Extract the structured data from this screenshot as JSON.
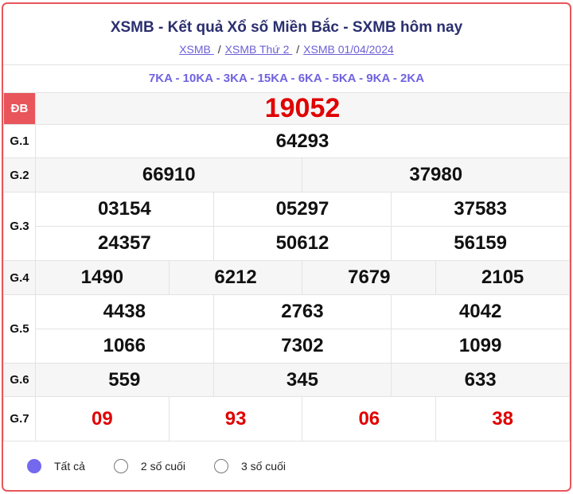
{
  "header": {
    "title": "XSMB - Kết quả Xổ số Miền Bắc - SXMB hôm nay",
    "breadcrumb": [
      "XSMB ",
      "XSMB Thứ 2 ",
      "XSMB 01/04/2024"
    ],
    "separator": "/"
  },
  "codes": "7KA - 10KA - 3KA - 15KA - 6KA - 5KA - 9KA - 2KA",
  "prizes": {
    "db": {
      "label": "ĐB",
      "values": [
        "19052"
      ]
    },
    "g1": {
      "label": "G.1",
      "values": [
        "64293"
      ]
    },
    "g2": {
      "label": "G.2",
      "values": [
        "66910",
        "37980"
      ]
    },
    "g3": {
      "label": "G.3",
      "values": [
        "03154",
        "05297",
        "37583",
        "24357",
        "50612",
        "56159"
      ]
    },
    "g4": {
      "label": "G.4",
      "values": [
        "1490",
        "6212",
        "7679",
        "2105"
      ]
    },
    "g5": {
      "label": "G.5",
      "values": [
        "4438",
        "2763",
        "4042",
        "1066",
        "7302",
        "1099"
      ]
    },
    "g6": {
      "label": "G.6",
      "values": [
        "559",
        "345",
        "633"
      ]
    },
    "g7": {
      "label": "G.7",
      "values": [
        "09",
        "93",
        "06",
        "38"
      ]
    }
  },
  "filter": {
    "options": [
      "Tất cả",
      "2 số cuối",
      "3 số cuối"
    ],
    "selected": "Tất cả"
  },
  "colors": {
    "accent": "#e8555b",
    "red": "#e00000",
    "purple": "#6f63e0"
  }
}
